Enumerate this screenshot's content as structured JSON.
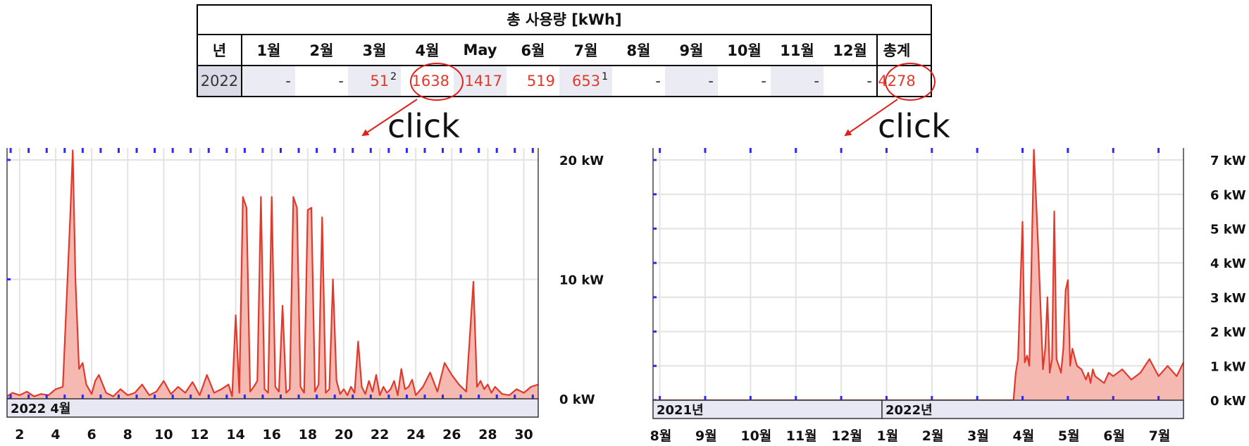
{
  "table": {
    "title": "총 사용량 [kWh]",
    "headers": [
      "년",
      "1월",
      "2월",
      "3월",
      "4월",
      "May",
      "6월",
      "7월",
      "8월",
      "9월",
      "10월",
      "11월",
      "12월",
      "총계"
    ],
    "row": {
      "year": "2022",
      "values": [
        "-",
        "-",
        "51",
        "1638",
        "1417",
        "519",
        "653",
        "-",
        "-",
        "-",
        "-",
        "-"
      ],
      "footnotes": {
        "2": "2",
        "6": "1"
      },
      "total": "4278"
    }
  },
  "annotations": {
    "left_click": "click",
    "right_click": "click"
  },
  "colors": {
    "series": "#e03a2d",
    "fill": "#f5b9b2",
    "ticks": "#2a2aff",
    "highlight": "#e0201a"
  },
  "chart_data": [
    {
      "type": "area",
      "title": "",
      "period_label": "2022 4월",
      "x_unit": "day of April 2022",
      "xlim": [
        1.3,
        30.8
      ],
      "x_ticks": [
        2,
        4,
        6,
        8,
        10,
        12,
        14,
        16,
        18,
        20,
        22,
        24,
        26,
        28,
        30
      ],
      "y_ticks": [
        0,
        10,
        20
      ],
      "y_tick_labels": [
        "0 kW",
        "10 kW",
        "20 kW"
      ],
      "ylim": [
        0,
        21
      ],
      "grid": true,
      "series": [
        {
          "x": [
            1.3,
            1.6,
            2.0,
            2.4,
            2.8,
            3.2,
            3.6,
            4.0,
            4.4,
            4.8,
            4.95,
            5.1,
            5.3,
            5.5,
            5.7,
            6.0,
            6.2,
            6.4,
            6.8,
            7.2,
            7.6,
            8.0,
            8.4,
            8.8,
            9.2,
            9.6,
            10.0,
            10.4,
            10.8,
            11.2,
            11.6,
            12.0,
            12.4,
            12.8,
            13.2,
            13.6,
            13.8,
            14.0,
            14.2,
            14.4,
            14.6,
            14.8,
            15.0,
            15.2,
            15.4,
            15.6,
            15.8,
            16.0,
            16.2,
            16.4,
            16.6,
            16.8,
            17.0,
            17.2,
            17.4,
            17.6,
            17.8,
            18.0,
            18.2,
            18.4,
            18.6,
            18.8,
            19.0,
            19.2,
            19.4,
            19.6,
            19.8,
            20.0,
            20.2,
            20.4,
            20.6,
            20.8,
            21.0,
            21.2,
            21.4,
            21.6,
            21.8,
            22.0,
            22.2,
            22.4,
            22.6,
            22.8,
            23.0,
            23.2,
            23.4,
            23.6,
            23.8,
            24.0,
            24.4,
            24.8,
            25.2,
            25.6,
            26.0,
            26.4,
            26.8,
            27.2,
            27.4,
            27.6,
            27.8,
            28.0,
            28.2,
            28.4,
            28.8,
            29.2,
            29.6,
            30.0,
            30.4,
            30.8
          ],
          "y": [
            0.2,
            0.5,
            0.3,
            0.6,
            0.2,
            0.4,
            0.3,
            0.8,
            1.0,
            15.0,
            20.8,
            10.0,
            2.5,
            3.0,
            1.2,
            0.4,
            1.5,
            2.0,
            0.5,
            0.2,
            0.8,
            0.3,
            0.5,
            1.2,
            0.3,
            0.6,
            1.5,
            0.4,
            1.0,
            0.5,
            1.4,
            0.3,
            2.0,
            0.5,
            0.8,
            1.2,
            0.2,
            7.0,
            0.5,
            16.9,
            16.0,
            0.6,
            1.0,
            1.5,
            16.9,
            0.8,
            0.5,
            16.9,
            1.0,
            0.6,
            7.8,
            0.5,
            0.8,
            16.9,
            16.0,
            1.0,
            0.5,
            15.8,
            16.0,
            0.6,
            1.2,
            15.2,
            0.5,
            0.8,
            10.0,
            1.5,
            0.4,
            0.8,
            0.3,
            1.0,
            0.5,
            4.8,
            1.0,
            0.4,
            1.5,
            0.6,
            2.0,
            0.3,
            1.0,
            0.5,
            0.8,
            1.5,
            0.3,
            2.5,
            0.8,
            1.0,
            1.6,
            0.3,
            1.0,
            2.2,
            0.6,
            3.0,
            2.0,
            1.2,
            0.6,
            9.8,
            1.0,
            1.5,
            0.8,
            1.2,
            0.5,
            1.0,
            0.4,
            0.3,
            0.8,
            0.5,
            1.0,
            1.2
          ]
        }
      ]
    },
    {
      "type": "area",
      "title": "",
      "period_labels": [
        "2021년",
        "2022년"
      ],
      "x_unit": "month index (8월 2021 = 0)",
      "xlim": [
        -0.15,
        11.55
      ],
      "x_ticks": [
        0,
        1,
        2,
        3,
        4,
        5,
        6,
        7,
        8,
        9,
        10,
        11
      ],
      "x_tick_labels": [
        "8월",
        "9월",
        "10월",
        "11월",
        "12월",
        "1월",
        "2월",
        "3월",
        "4월",
        "5월",
        "6월",
        "7월"
      ],
      "y_ticks": [
        0,
        1,
        2,
        3,
        4,
        5,
        6,
        7
      ],
      "y_tick_labels": [
        "0 kW",
        "1 kW",
        "2 kW",
        "3 kW",
        "4 kW",
        "5 kW",
        "6 kW",
        "7 kW"
      ],
      "ylim": [
        0,
        7.35
      ],
      "grid": true,
      "series": [
        {
          "x": [
            -0.15,
            7.8,
            7.85,
            7.9,
            8.0,
            8.05,
            8.1,
            8.15,
            8.25,
            8.35,
            8.45,
            8.5,
            8.55,
            8.6,
            8.65,
            8.7,
            8.75,
            8.8,
            8.85,
            8.9,
            8.95,
            9.0,
            9.05,
            9.1,
            9.2,
            9.3,
            9.4,
            9.45,
            9.5,
            9.55,
            9.6,
            9.7,
            9.8,
            9.9,
            10.0,
            10.2,
            10.4,
            10.6,
            10.8,
            11.0,
            11.2,
            11.4,
            11.55
          ],
          "y": [
            0,
            0,
            0.8,
            1.2,
            5.2,
            1.1,
            1.3,
            1.0,
            7.3,
            4.3,
            0.9,
            1.5,
            3.0,
            0.8,
            1.2,
            5.5,
            1.2,
            1.0,
            0.8,
            1.5,
            3.2,
            3.5,
            1.0,
            1.5,
            1.0,
            0.9,
            0.6,
            0.8,
            0.5,
            0.9,
            0.7,
            0.6,
            0.5,
            0.8,
            0.7,
            0.9,
            0.6,
            0.8,
            1.2,
            0.7,
            1.0,
            0.7,
            1.1
          ]
        }
      ]
    }
  ]
}
